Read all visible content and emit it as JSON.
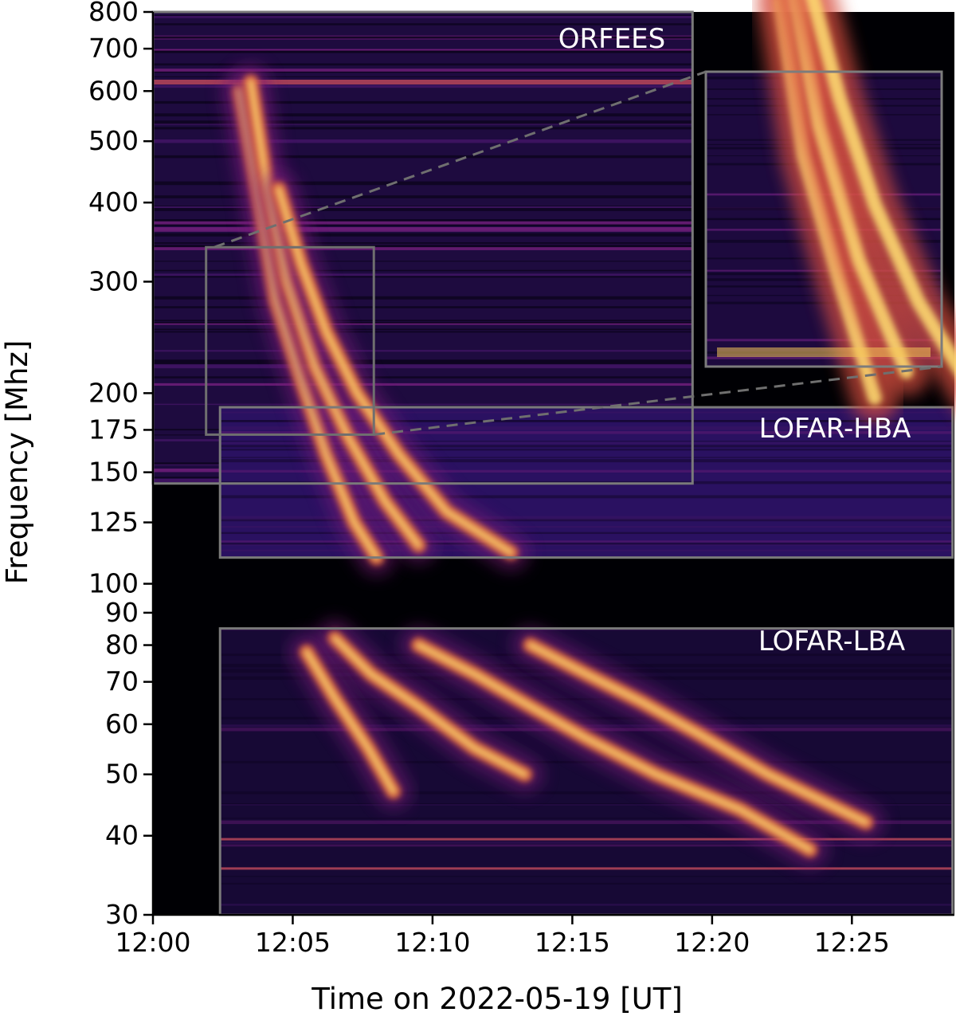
{
  "chart_data": {
    "type": "heatmap",
    "title": "",
    "xlabel": "Time on 2022-05-19 [UT]",
    "ylabel": "Frequency [Mhz]",
    "xscale": "linear",
    "yscale": "log",
    "xlim": [
      "12:00",
      "12:28:40"
    ],
    "ylim": [
      30,
      800
    ],
    "colormap": "inferno",
    "grid": false,
    "x_ticks": [
      {
        "value": 0,
        "label": "12:00"
      },
      {
        "value": 5,
        "label": "12:05"
      },
      {
        "value": 10,
        "label": "12:10"
      },
      {
        "value": 15,
        "label": "12:15"
      },
      {
        "value": 20,
        "label": "12:20"
      },
      {
        "value": 25,
        "label": "12:25"
      }
    ],
    "y_ticks": [
      {
        "value": 800,
        "label": "800"
      },
      {
        "value": 700,
        "label": "700"
      },
      {
        "value": 600,
        "label": "600"
      },
      {
        "value": 500,
        "label": "500"
      },
      {
        "value": 400,
        "label": "400"
      },
      {
        "value": 300,
        "label": "300"
      },
      {
        "value": 200,
        "label": "200"
      },
      {
        "value": 175,
        "label": "175"
      },
      {
        "value": 150,
        "label": "150"
      },
      {
        "value": 125,
        "label": "125"
      },
      {
        "value": 100,
        "label": "100"
      },
      {
        "value": 90,
        "label": "90"
      },
      {
        "value": 80,
        "label": "80"
      },
      {
        "value": 70,
        "label": "70"
      },
      {
        "value": 60,
        "label": "60"
      },
      {
        "value": 50,
        "label": "50"
      },
      {
        "value": 40,
        "label": "40"
      },
      {
        "value": 30,
        "label": "30"
      }
    ],
    "panels": [
      {
        "name": "ORFEES",
        "t_start_min": 0,
        "t_end_min": 19.3,
        "f_min": 144,
        "f_max": 800
      },
      {
        "name": "LOFAR-HBA",
        "t_start_min": 2.4,
        "t_end_min": 28.6,
        "f_min": 110,
        "f_max": 190
      },
      {
        "name": "LOFAR-LBA",
        "t_start_min": 2.4,
        "t_end_min": 28.6,
        "f_min": 30,
        "f_max": 85
      }
    ],
    "zoom_region": {
      "t_start_min": 1.9,
      "t_end_min": 7.9,
      "f_min": 172,
      "f_max": 340
    },
    "series": [
      {
        "kind": "emission-lane",
        "points": [
          [
            3.1,
            600
          ],
          [
            3.8,
            400
          ],
          [
            4.4,
            280
          ],
          [
            5.3,
            210
          ],
          [
            6.2,
            160
          ],
          [
            7.2,
            125
          ],
          [
            8.0,
            110
          ]
        ]
      },
      {
        "kind": "emission-lane",
        "points": [
          [
            3.5,
            620
          ],
          [
            4.1,
            420
          ],
          [
            4.8,
            300
          ],
          [
            5.8,
            220
          ],
          [
            7.0,
            170
          ],
          [
            8.3,
            135
          ],
          [
            9.5,
            115
          ]
        ]
      },
      {
        "kind": "emission-lane",
        "points": [
          [
            4.5,
            420
          ],
          [
            5.3,
            320
          ],
          [
            6.2,
            250
          ],
          [
            7.3,
            200
          ],
          [
            8.8,
            160
          ],
          [
            10.5,
            130
          ],
          [
            12.8,
            112
          ]
        ]
      },
      {
        "kind": "emission-lane",
        "points": [
          [
            6.5,
            82
          ],
          [
            7.8,
            72
          ],
          [
            9.5,
            64
          ],
          [
            11.5,
            55
          ],
          [
            13.3,
            50
          ]
        ]
      },
      {
        "kind": "emission-lane",
        "points": [
          [
            9.5,
            80
          ],
          [
            11.5,
            72
          ],
          [
            13.5,
            64
          ],
          [
            15.5,
            57
          ],
          [
            18.0,
            50
          ],
          [
            21.0,
            44
          ],
          [
            23.5,
            38
          ]
        ]
      },
      {
        "kind": "emission-lane",
        "points": [
          [
            13.5,
            80
          ],
          [
            15.5,
            72
          ],
          [
            17.5,
            65
          ],
          [
            19.5,
            58
          ],
          [
            22.0,
            50
          ],
          [
            25.5,
            42
          ]
        ]
      },
      {
        "kind": "emission-lane",
        "points": [
          [
            5.5,
            78
          ],
          [
            6.5,
            66
          ],
          [
            7.7,
            55
          ],
          [
            8.6,
            47
          ]
        ]
      }
    ],
    "interference_lines": [
      {
        "f": 35.5,
        "t_start_min": 2.4,
        "t_end_min": 28.6
      },
      {
        "f": 39.5,
        "t_start_min": 2.4,
        "t_end_min": 28.6
      },
      {
        "f": 620,
        "t_start_min": 0,
        "t_end_min": 19.3
      }
    ]
  },
  "panel_labels": {
    "orfees": "ORFEES",
    "hba": "LOFAR-HBA",
    "lba": "LOFAR-LBA"
  }
}
